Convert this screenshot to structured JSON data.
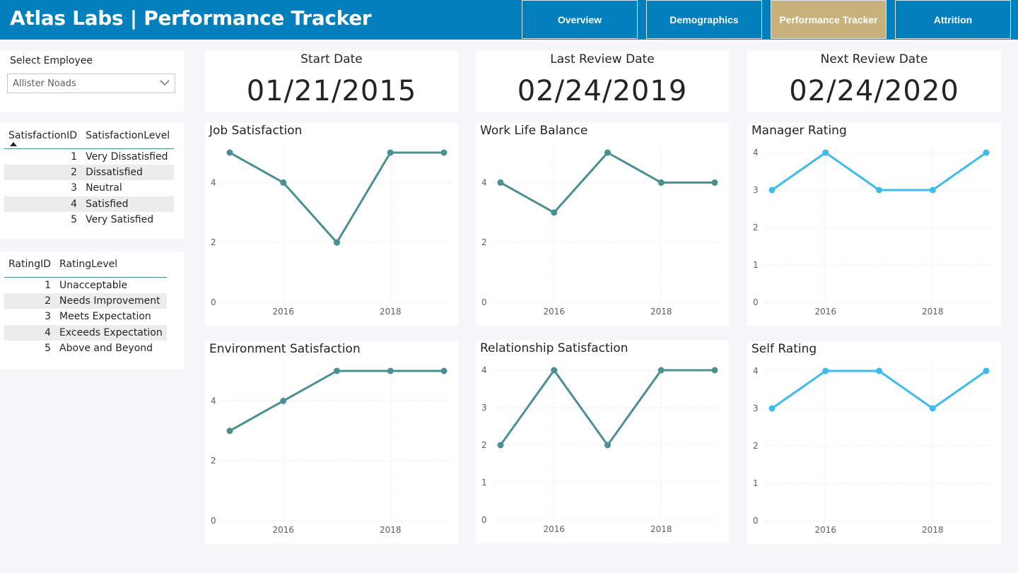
{
  "header": {
    "title": "Atlas Labs | Performance Tracker",
    "nav": [
      {
        "label": "Overview",
        "active": false
      },
      {
        "label": "Demographics",
        "active": false
      },
      {
        "label": "Performance Tracker",
        "active": true
      },
      {
        "label": "Attrition",
        "active": false
      }
    ]
  },
  "slicer": {
    "label": "Select Employee",
    "value": "Allister Noads",
    "icon": "chevron-down-icon"
  },
  "satisfaction_table": {
    "headers": [
      "SatisfactionID",
      "SatisfactionLevel"
    ],
    "rows": [
      {
        "id": "1",
        "level": "Very Dissatisfied"
      },
      {
        "id": "2",
        "level": "Dissatisfied"
      },
      {
        "id": "3",
        "level": "Neutral"
      },
      {
        "id": "4",
        "level": "Satisfied"
      },
      {
        "id": "5",
        "level": "Very Satisfied"
      }
    ]
  },
  "rating_table": {
    "headers": [
      "RatingID",
      "RatingLevel"
    ],
    "rows": [
      {
        "id": "1",
        "level": "Unacceptable"
      },
      {
        "id": "2",
        "level": "Needs Improvement"
      },
      {
        "id": "3",
        "level": "Meets Expectation"
      },
      {
        "id": "4",
        "level": "Exceeds Expectation"
      },
      {
        "id": "5",
        "level": "Above and Beyond"
      }
    ]
  },
  "kpis": [
    {
      "title": "Start Date",
      "value": "01/21/2015"
    },
    {
      "title": "Last Review Date",
      "value": "02/24/2019"
    },
    {
      "title": "Next Review Date",
      "value": "02/24/2020"
    }
  ],
  "colors": {
    "teal": "#4a8f92",
    "sky": "#3dbbef",
    "header": "#0280bd",
    "active_tab": "#c8b17a"
  },
  "chart_data": [
    {
      "type": "line",
      "title": "Job Satisfaction",
      "x": [
        2015,
        2016,
        2017,
        2018,
        2019
      ],
      "values": [
        5,
        4,
        2,
        5,
        5
      ],
      "y_ticks": [
        0,
        2,
        4
      ],
      "ylim": [
        0,
        5
      ],
      "x_ticks": [
        2016,
        2018
      ],
      "color": "#4a8f92",
      "grid": true
    },
    {
      "type": "line",
      "title": "Work Life Balance",
      "x": [
        2015,
        2016,
        2017,
        2018,
        2019
      ],
      "values": [
        4,
        3,
        5,
        4,
        4
      ],
      "y_ticks": [
        0,
        2,
        4
      ],
      "ylim": [
        0,
        5
      ],
      "x_ticks": [
        2016,
        2018
      ],
      "color": "#4a8f92",
      "grid": true
    },
    {
      "type": "line",
      "title": "Manager Rating",
      "x": [
        2015,
        2016,
        2017,
        2018,
        2019
      ],
      "values": [
        3,
        4,
        3,
        3,
        4
      ],
      "y_ticks": [
        0,
        1,
        2,
        3,
        4
      ],
      "ylim": [
        0,
        4
      ],
      "x_ticks": [
        2016,
        2018
      ],
      "color": "#3dbbef",
      "grid": true
    },
    {
      "type": "line",
      "title": "Environment Satisfaction",
      "x": [
        2015,
        2016,
        2017,
        2018,
        2019
      ],
      "values": [
        3,
        4,
        5,
        5,
        5
      ],
      "y_ticks": [
        0,
        2,
        4
      ],
      "ylim": [
        0,
        5
      ],
      "x_ticks": [
        2016,
        2018
      ],
      "color": "#4a8f92",
      "grid": true
    },
    {
      "type": "line",
      "title": "Relationship Satisfaction",
      "x": [
        2015,
        2016,
        2017,
        2018,
        2019
      ],
      "values": [
        2,
        4,
        2,
        4,
        4
      ],
      "y_ticks": [
        0,
        1,
        2,
        3,
        4
      ],
      "ylim": [
        0,
        4
      ],
      "x_ticks": [
        2016,
        2018
      ],
      "color": "#4a8f92",
      "grid": true
    },
    {
      "type": "line",
      "title": "Self Rating",
      "x": [
        2015,
        2016,
        2017,
        2018,
        2019
      ],
      "values": [
        3,
        4,
        4,
        3,
        4
      ],
      "y_ticks": [
        0,
        1,
        2,
        3,
        4
      ],
      "ylim": [
        0,
        4
      ],
      "x_ticks": [
        2016,
        2018
      ],
      "color": "#3dbbef",
      "grid": true
    }
  ]
}
